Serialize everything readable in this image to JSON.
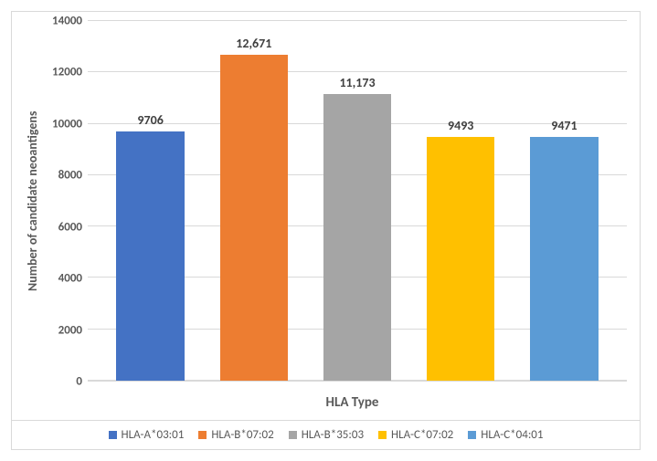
{
  "chart": {
    "type": "bar",
    "x_axis_label": "HLA Type",
    "y_axis_label": "Number of candidate neoantigens",
    "ylim": [
      0,
      14000
    ],
    "ytick_step": 2000,
    "yticks": [
      0,
      2000,
      4000,
      6000,
      8000,
      10000,
      12000,
      14000
    ],
    "background_color": "#ffffff",
    "grid_color": "#d9d9d9",
    "border_color": "#d9d9d9",
    "axis_text_color": "#595959",
    "data_label_color": "#404040",
    "y_title_fontsize": 14,
    "x_title_fontsize": 15,
    "tick_fontsize": 13,
    "data_label_fontsize": 14,
    "legend_fontsize": 13,
    "bar_width": 0.75,
    "categories": [
      {
        "name": "HLA-A*03:01",
        "value": 9706,
        "display": "9706",
        "color": "#4472c4"
      },
      {
        "name": "HLA-B*07:02",
        "value": 12671,
        "display": "12,671",
        "color": "#ed7d31"
      },
      {
        "name": "HLA-B*35:03",
        "value": 11173,
        "display": "11,173",
        "color": "#a5a5a5"
      },
      {
        "name": "HLA-C*07:02",
        "value": 9493,
        "display": "9493",
        "color": "#ffc000"
      },
      {
        "name": "HLA-C*04:01",
        "value": 9471,
        "display": "9471",
        "color": "#5b9bd5"
      }
    ]
  }
}
